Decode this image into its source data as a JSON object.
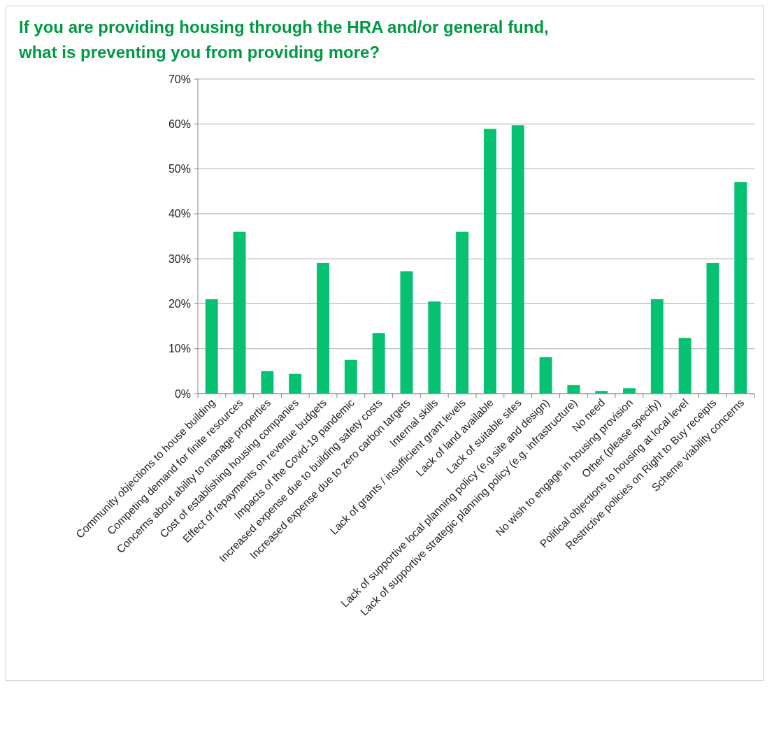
{
  "chart_data": {
    "type": "bar",
    "title": "If you are providing housing through the HRA and/or general fund, what is preventing you from providing more?",
    "categories": [
      "Community objections to house building",
      "Competing demand for finite resources",
      "Concerns about ability to manage properties",
      "Cost of establishing housing companies",
      "Effect of repayments on revenue budgets",
      "Impacts of the Covid-19 pandemic",
      "Increased expense due to building safety costs",
      "Increased expense due to zero carbon targets",
      "Internal skills",
      "Lack of grants / insufficient grant levels",
      "Lack of land available",
      "Lack of suitable sites",
      "Lack of supportive local planning policy (e.g.site and design)",
      "Lack of supportive strategic planning policy (e.g. infrastructure)",
      "No need",
      "No wish to engage in housing provision",
      "Other (please specify)",
      "Political objections to housing at local level",
      "Restrictive policies on Right to Buy receipts",
      "Scheme viability concerns"
    ],
    "values": [
      21,
      36,
      5,
      4.4,
      29.1,
      7.5,
      13.5,
      27.2,
      20.5,
      36,
      58.9,
      59.7,
      8.1,
      1.9,
      0.6,
      1.2,
      21,
      12.4,
      29.1,
      47.1
    ],
    "color": "#06c172",
    "ylim": [
      0,
      70
    ],
    "yticks": [
      {
        "value": 0,
        "label": "0%"
      },
      {
        "value": 10,
        "label": "10%"
      },
      {
        "value": 20,
        "label": "20%"
      },
      {
        "value": 30,
        "label": "30%"
      },
      {
        "value": 40,
        "label": "40%"
      },
      {
        "value": 50,
        "label": "50%"
      },
      {
        "value": 60,
        "label": "60%"
      },
      {
        "value": 70,
        "label": "70%"
      }
    ],
    "grid": "y"
  }
}
